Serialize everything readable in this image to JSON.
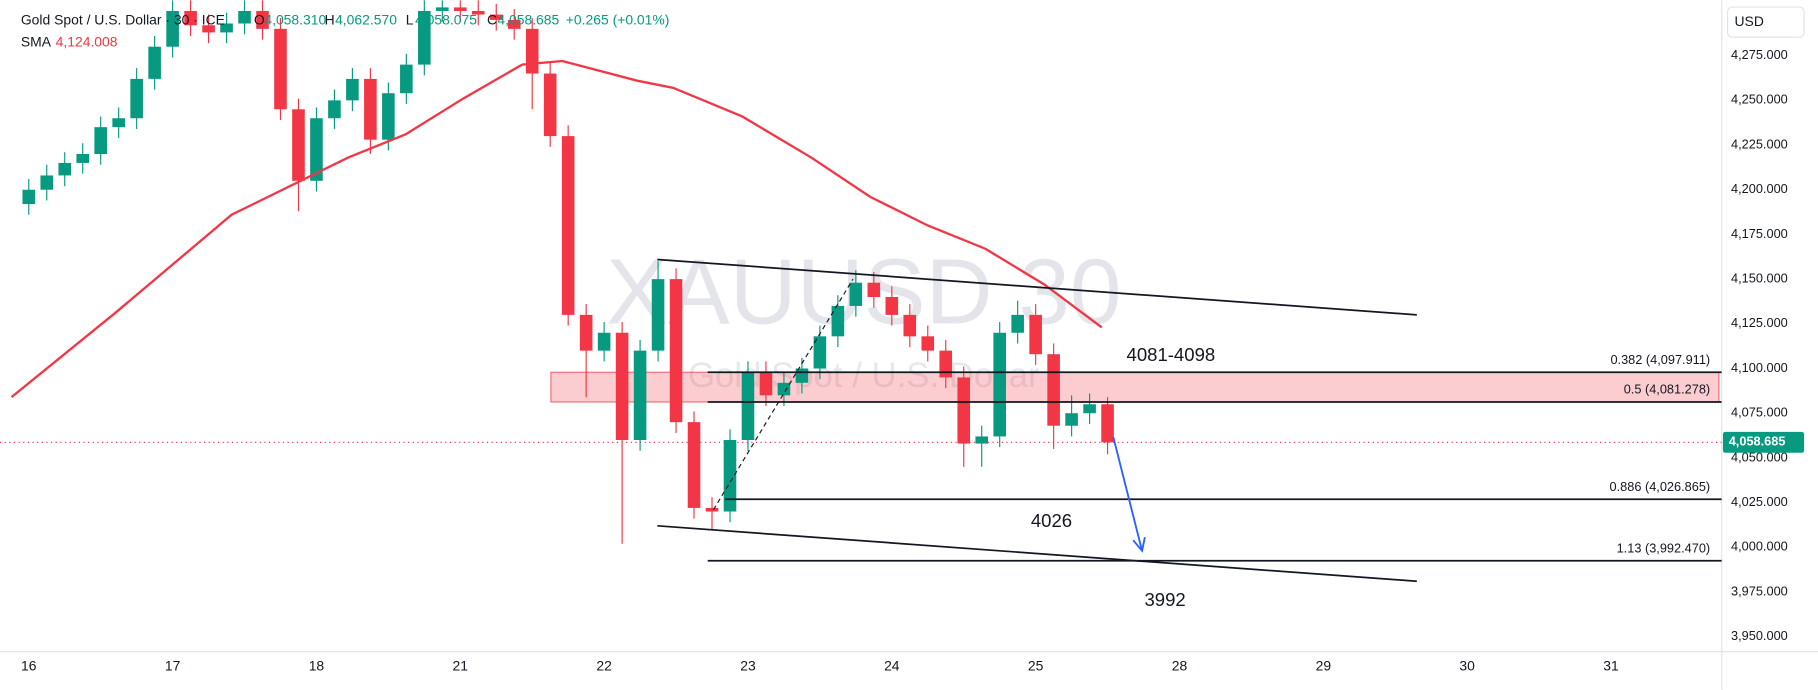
{
  "header": {
    "symbol": "Gold Spot / U.S. Dollar · 30 · ICE",
    "open_label": "O",
    "open": "4,058.310",
    "high_label": "H",
    "high": "4,062.570",
    "low_label": "L",
    "low": "4,058.075",
    "close_label": "C",
    "close": "4,058.685",
    "change": "+0.265 (+0.01%)",
    "sma_value": "4,124.008"
  },
  "chart_data": {
    "type": "candlestick",
    "title": "XAUUSD 30",
    "subtitle": "Gold Spot / U.S. Dollar",
    "y_axis_label": "USD",
    "up_color": "#089981",
    "down_color": "#f23645",
    "x": [
      0,
      0.125,
      0.25,
      0.375,
      0.5,
      0.625,
      0.75,
      0.875,
      1,
      1.125,
      1.25,
      1.375,
      1.5,
      1.625,
      1.75,
      1.875,
      2,
      2.125,
      2.25,
      2.375,
      2.5,
      2.625,
      2.75,
      2.875,
      3,
      3.125,
      3.25,
      3.375,
      3.5,
      3.625,
      3.75,
      3.875,
      4,
      4.125,
      4.25,
      4.375,
      4.5,
      4.625,
      4.75,
      4.875,
      5,
      5.125,
      5.25,
      5.375,
      5.5,
      5.625,
      5.75,
      5.875,
      6,
      6.125,
      6.25,
      6.375,
      6.5,
      6.625,
      6.75,
      6.875,
      7,
      7.125,
      7.25,
      7.375,
      7.5
    ],
    "open": [
      4192,
      4200,
      4208,
      4215,
      4220,
      4235,
      4240,
      4262,
      4280,
      4300,
      4292,
      4288,
      4293,
      4300,
      4290,
      4245,
      4205,
      4240,
      4250,
      4262,
      4228,
      4254,
      4270,
      4300,
      4302,
      4300,
      4298,
      4295,
      4290,
      4265,
      4230,
      4130,
      4110,
      4120,
      4060,
      4110,
      4150,
      4070,
      4022,
      4020,
      4060,
      4098,
      4085,
      4092,
      4100,
      4118,
      4135,
      4148,
      4140,
      4130,
      4118,
      4110,
      4095,
      4058,
      4062,
      4120,
      4130,
      4108,
      4068,
      4075,
      4080
    ],
    "high": [
      4206,
      4214,
      4221,
      4226,
      4241,
      4246,
      4268,
      4286,
      4306,
      4306,
      4298,
      4299,
      4306,
      4306,
      4296,
      4251,
      4246,
      4256,
      4268,
      4268,
      4260,
      4276,
      4306,
      4306,
      4306,
      4306,
      4304,
      4301,
      4296,
      4271,
      4236,
      4136,
      4126,
      4126,
      4116,
      4160,
      4156,
      4076,
      4028,
      4066,
      4104,
      4104,
      4098,
      4106,
      4124,
      4141,
      4155,
      4154,
      4146,
      4136,
      4124,
      4116,
      4101,
      4068,
      4126,
      4138,
      4136,
      4114,
      4085,
      4086,
      4084
    ],
    "low": [
      4186,
      4194,
      4202,
      4209,
      4214,
      4229,
      4234,
      4256,
      4274,
      4286,
      4282,
      4282,
      4287,
      4284,
      4239,
      4188,
      4199,
      4234,
      4244,
      4220,
      4222,
      4248,
      4264,
      4294,
      4294,
      4292,
      4289,
      4284,
      4245,
      4224,
      4124,
      4084,
      4104,
      4002,
      4054,
      4104,
      4064,
      4016,
      4010,
      4014,
      4054,
      4079,
      4079,
      4086,
      4094,
      4112,
      4129,
      4134,
      4124,
      4112,
      4104,
      4089,
      4045,
      4045,
      4056,
      4114,
      4102,
      4055,
      4062,
      4069,
      4052
    ],
    "close": [
      4200,
      4208,
      4215,
      4220,
      4235,
      4240,
      4262,
      4280,
      4300,
      4292,
      4288,
      4293,
      4300,
      4290,
      4245,
      4205,
      4240,
      4250,
      4262,
      4228,
      4254,
      4270,
      4300,
      4302,
      4300,
      4298,
      4295,
      4290,
      4265,
      4230,
      4130,
      4110,
      4120,
      4060,
      4110,
      4150,
      4070,
      4022,
      4020,
      4060,
      4098,
      4085,
      4092,
      4100,
      4118,
      4135,
      4148,
      4140,
      4130,
      4118,
      4110,
      4095,
      4058,
      4062,
      4120,
      4130,
      4108,
      4068,
      4075,
      4080,
      4058.685
    ],
    "series": [
      {
        "name": "SMA",
        "color": "#f23645",
        "x": [
          -0.12,
          0.6,
          1.41,
          2.22,
          2.62,
          3.02,
          3.43,
          3.71,
          4.23,
          4.48,
          4.96,
          5.44,
          5.85,
          6.25,
          6.65,
          7.06,
          7.46
        ],
        "values": [
          4084,
          4131,
          4186,
          4218,
          4231,
          4251,
          4270,
          4272,
          4261,
          4257,
          4241,
          4218,
          4196,
          4180,
          4167,
          4147,
          4123
        ]
      }
    ],
    "xlim": [
      -0.2,
      11.77
    ],
    "ylim": [
      3941.6,
      4306.1
    ],
    "xticks": [
      {
        "value": 0,
        "label": "16"
      },
      {
        "value": 1,
        "label": "17"
      },
      {
        "value": 2,
        "label": "18"
      },
      {
        "value": 3,
        "label": "21"
      },
      {
        "value": 4,
        "label": "22"
      },
      {
        "value": 5,
        "label": "23"
      },
      {
        "value": 6,
        "label": "24"
      },
      {
        "value": 7,
        "label": "25"
      },
      {
        "value": 8,
        "label": "28"
      },
      {
        "value": 9,
        "label": "29"
      },
      {
        "value": 10,
        "label": "30"
      },
      {
        "value": 11,
        "label": "31"
      }
    ],
    "yticks": [
      {
        "value": 3950,
        "label": "3,950.000"
      },
      {
        "value": 3975,
        "label": "3,975.000"
      },
      {
        "value": 4000,
        "label": "4,000.000"
      },
      {
        "value": 4025,
        "label": "4,025.000"
      },
      {
        "value": 4050,
        "label": "4,050.000"
      },
      {
        "value": 4075,
        "label": "4,075.000"
      },
      {
        "value": 4100,
        "label": "4,100.000"
      },
      {
        "value": 4125,
        "label": "4,125.000"
      },
      {
        "value": 4150,
        "label": "4,150.000"
      },
      {
        "value": 4175,
        "label": "4,175.000"
      },
      {
        "value": 4200,
        "label": "4,200.000"
      },
      {
        "value": 4225,
        "label": "4,225.000"
      },
      {
        "value": 4250,
        "label": "4,250.000"
      },
      {
        "value": 4275,
        "label": "4,275.000"
      }
    ],
    "last_price": {
      "value": 4058.685,
      "label": "4,058.685"
    },
    "trendlines": [
      {
        "x": [
          4.37,
          9.65
        ],
        "values": [
          4161,
          4130
        ]
      },
      {
        "x": [
          4.37,
          9.65
        ],
        "values": [
          4012,
          3981
        ]
      }
    ],
    "dashed_line": {
      "x": [
        4.76,
        5.73
      ],
      "values": [
        4021,
        4150
      ]
    },
    "arrow": {
      "x": [
        7.54,
        7.74
      ],
      "values": [
        4061.6,
        3998
      ],
      "color": "#2962ff"
    },
    "zone": {
      "low": 4081.278,
      "high": 4097.911,
      "x": [
        3.63,
        11.75
      ],
      "color": "#f23645"
    },
    "levels": [
      {
        "value": 4097.911,
        "label": "0.382 (4,097.911)",
        "x_start": 4.72
      },
      {
        "value": 4081.278,
        "label": "0.5 (4,081.278)",
        "x_start": 4.72
      },
      {
        "value": 4026.865,
        "label": "0.886 (4,026.865)",
        "x_start": 4.84
      },
      {
        "value": 3992.47,
        "label": "1.13 (3,992.470)",
        "x_start": 4.72
      }
    ],
    "annotations": [
      {
        "text": "4081-4098",
        "x": 7.94,
        "y": 4107
      },
      {
        "text": "4026",
        "x": 7.11,
        "y": 4014
      },
      {
        "text": "3992",
        "x": 7.9,
        "y": 3970
      }
    ]
  }
}
